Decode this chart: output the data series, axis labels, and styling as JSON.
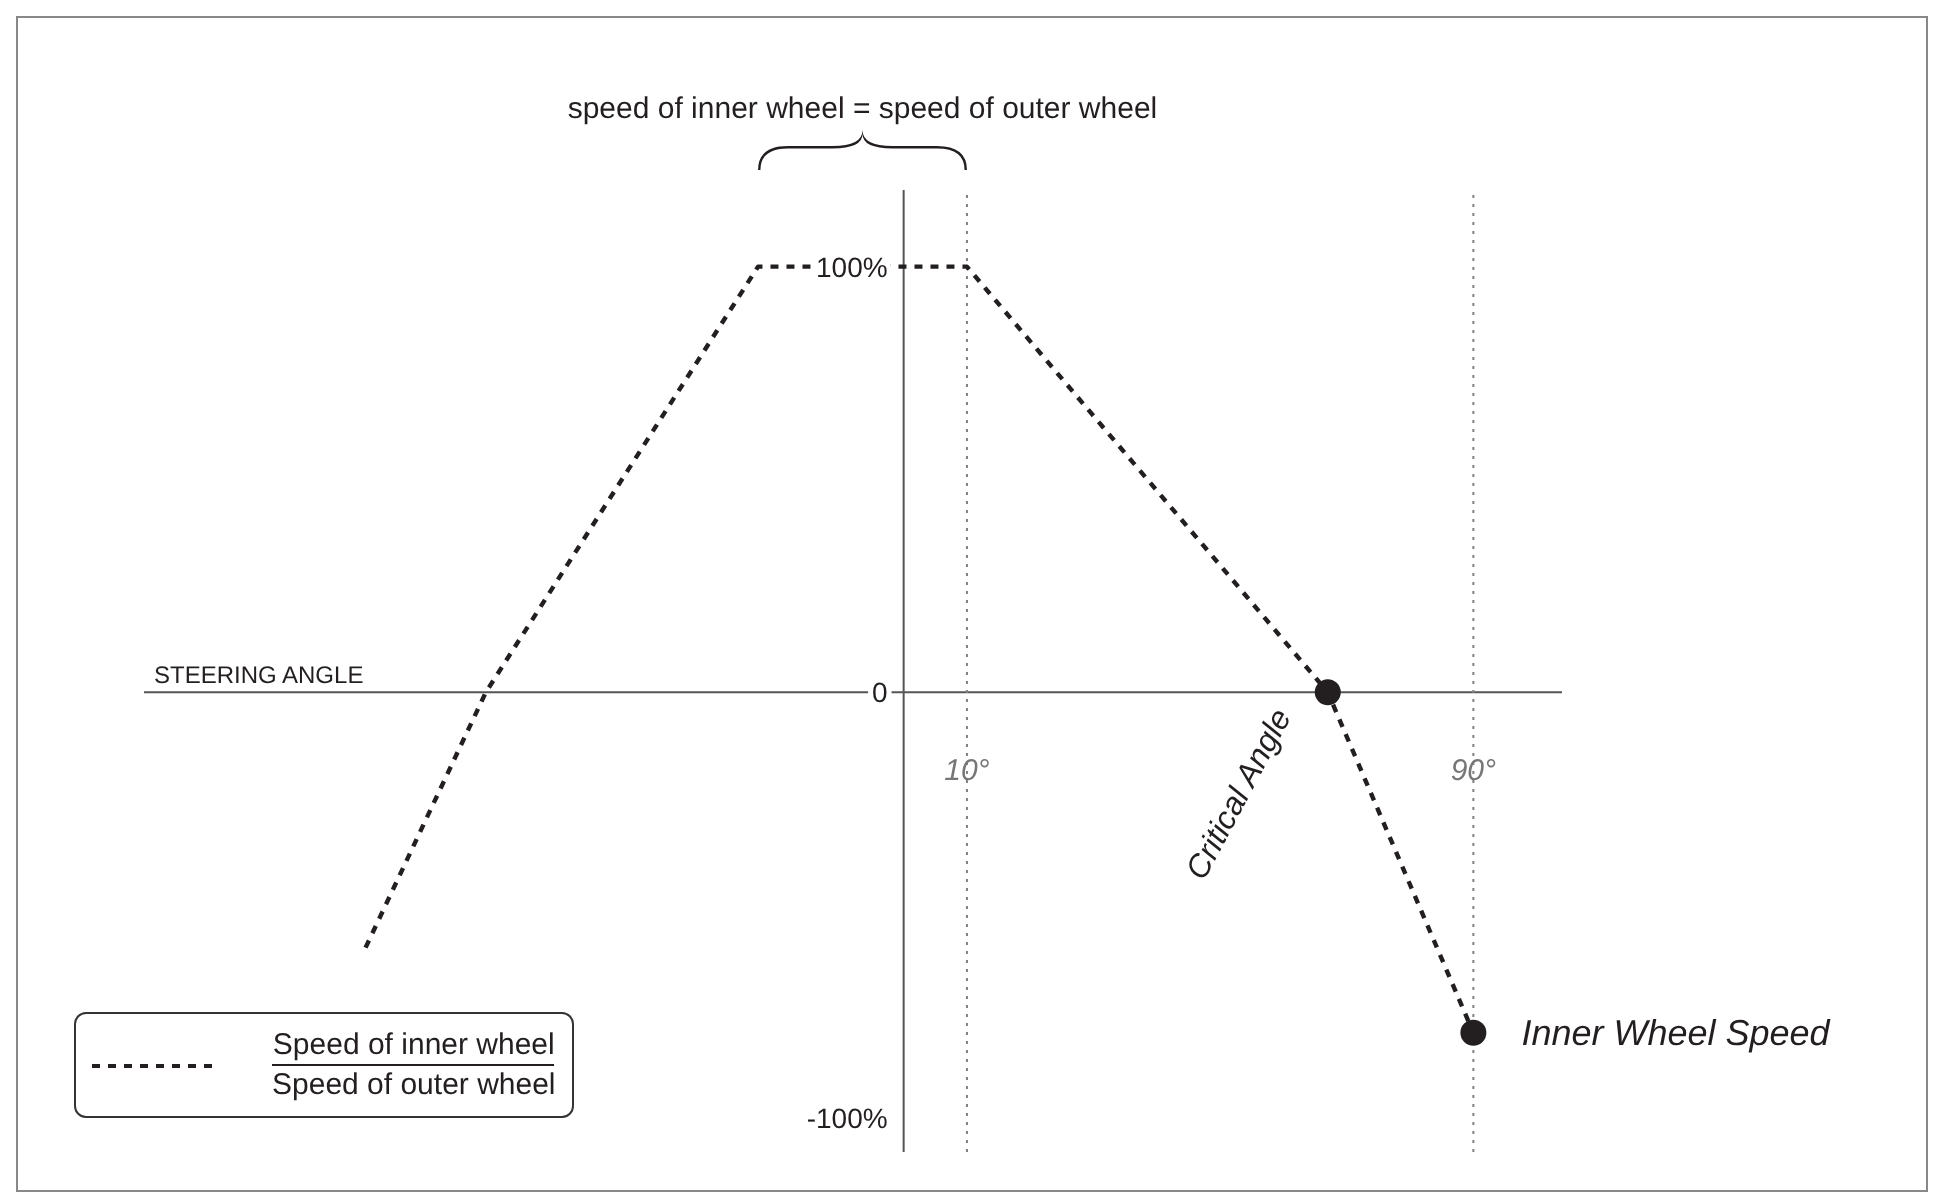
{
  "chart_data": {
    "type": "line",
    "xlabel": "STEERING ANGLE",
    "x": [
      -85,
      -66,
      -23,
      10,
      67,
      90
    ],
    "series": [
      {
        "name": "Speed of inner wheel\nSpeed of outer wheel",
        "color": "#231f20",
        "values": [
          -60,
          0,
          100,
          100,
          0,
          -80
        ]
      }
    ],
    "xlim": [
      -120,
      104
    ],
    "ylim": [
      -108,
      118
    ],
    "xticks": [
      {
        "value": 10,
        "label": "10°"
      },
      {
        "value": 90,
        "label": "90°"
      }
    ],
    "yticks": [
      {
        "value": -100,
        "label": "-100%"
      },
      0,
      {
        "value": 100,
        "label": "100%"
      }
    ],
    "ref_lines": [
      {
        "axis": "x",
        "value": 10,
        "color": "#808080",
        "line_style": "dotted"
      },
      {
        "axis": "x",
        "value": 90,
        "color": "#808080",
        "line_style": "dotted"
      }
    ],
    "annotations": [
      "speed of inner wheel = speed of outer wheel",
      {
        "text": "Critical Angle",
        "x": 67,
        "y": 0
      },
      {
        "text": "Inner Wheel Speed",
        "x": 90,
        "y": -80
      }
    ],
    "line_style": "dashed",
    "marker": "none",
    "grid": false,
    "legend": "bottom left"
  }
}
